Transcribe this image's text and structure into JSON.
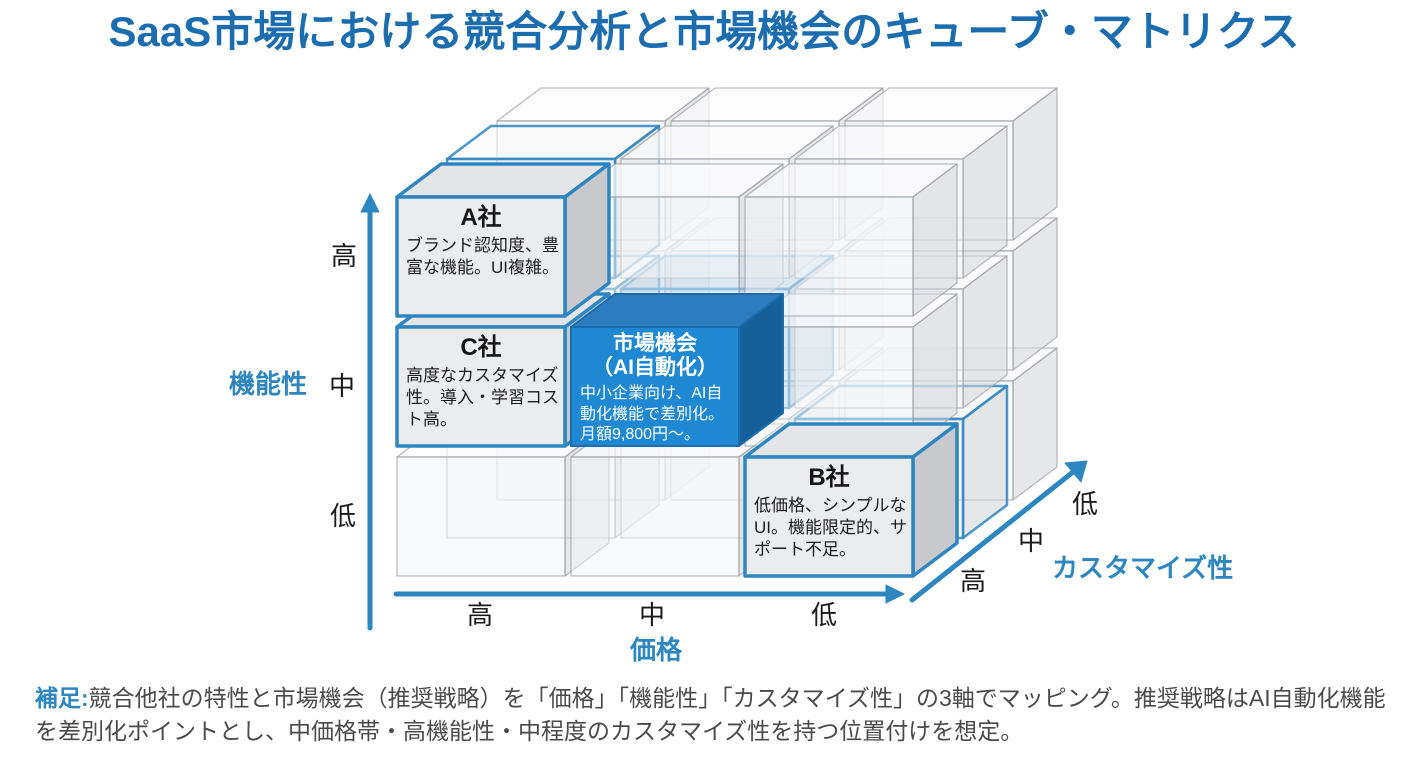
{
  "title": "SaaS市場における競合分析と市場機会のキューブ・マトリクス",
  "axes": {
    "functionality": {
      "label": "機能性",
      "ticks": [
        "高",
        "中",
        "低"
      ]
    },
    "price": {
      "label": "価格",
      "ticks": [
        "高",
        "中",
        "低"
      ]
    },
    "customizability": {
      "label": "カスタマイズ性",
      "ticks": [
        "高",
        "中",
        "低"
      ]
    }
  },
  "grid": {
    "rows": 3,
    "cols": 3,
    "layers": 3
  },
  "boxes": [
    {
      "id": "company-a",
      "title": "A社",
      "body": "ブランド認知度、豊富な機能。UI複雑。",
      "col": 0,
      "row": 0,
      "style": "outlined"
    },
    {
      "id": "company-c",
      "title": "C社",
      "body": "高度なカスタマイズ性。導入・学習コスト高。",
      "col": 0,
      "row": 1,
      "style": "outlined"
    },
    {
      "id": "market-opportunity",
      "title": "市場機会",
      "subtitle": "（AI自動化）",
      "body": "中小企業向け、AI自動化機能で差別化。月額9,800円〜。",
      "col": 1,
      "row": 1,
      "style": "filled"
    },
    {
      "id": "company-b",
      "title": "B社",
      "body": "低価格、シンプルなUI。機能限定的、サポート不足。",
      "col": 2,
      "row": 2,
      "style": "outlined"
    }
  ],
  "note": {
    "label": "補足:",
    "text": "競合他社の特性と市場機会（推奨戦略）を「価格」「機能性」「カスタマイズ性」の3軸でマッピング。推奨戦略はAI自動化機能を差別化ポイントとし、中価格帯・高機能性・中程度のカスタマイズ性を持つ位置付けを想定。"
  },
  "colors": {
    "accent": "#2e86c1",
    "title_text": "#1b6db0",
    "market_front": "#1e88d2",
    "market_top": "#2b7dc0",
    "market_side": "#155f9b",
    "outlined_front": "#ebecee",
    "outlined_top": "#e4e5e8",
    "outlined_side": "#c7c9cd"
  }
}
